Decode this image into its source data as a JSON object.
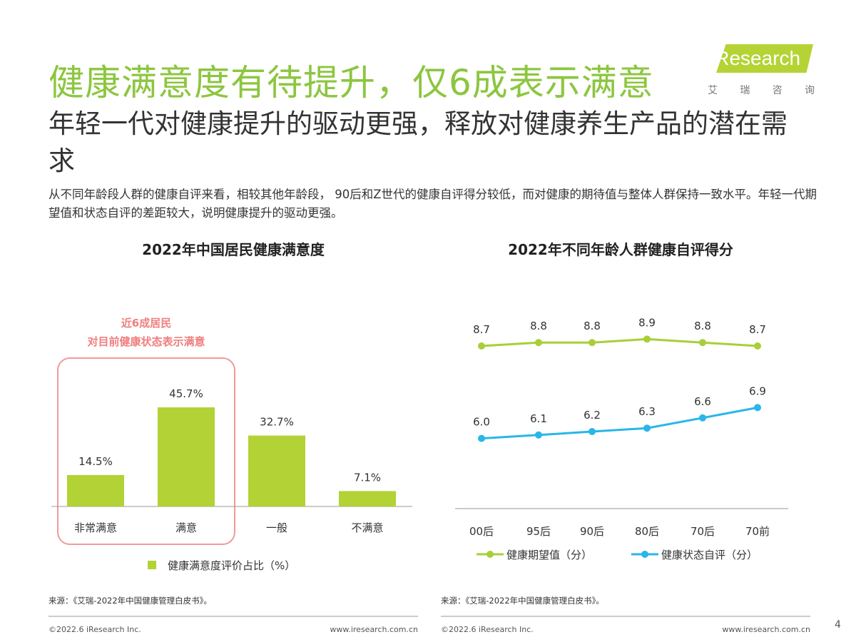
{
  "header": {
    "title": "健康满意度有待提升，仅6成表示满意",
    "subtitle": "年轻一代对健康提升的驱动更强，释放对健康养生产品的潜在需求",
    "description": "从不同年龄段人群的健康自评来看，相较其他年龄段， 90后和Z世代的健康自评得分较低，而对健康的期待值与整体人群保持一致水平。年轻一代期望值和状态自评的差距较大，说明健康提升的驱动更强。"
  },
  "logo": {
    "text": "iResearch",
    "cn": [
      "艾",
      "瑞",
      "咨",
      "询"
    ]
  },
  "annotation": {
    "line1": "近6成居民",
    "line2": "对目前健康状态表示满意",
    "color": "#f07f7f"
  },
  "chart_data": [
    {
      "type": "bar",
      "title": "2022年中国居民健康满意度",
      "categories": [
        "非常满意",
        "满意",
        "一般",
        "不满意"
      ],
      "values": [
        14.5,
        45.7,
        32.7,
        7.1
      ],
      "data_labels": [
        "14.5%",
        "45.7%",
        "32.7%",
        "7.1%"
      ],
      "series": [
        {
          "name": "健康满意度评价占比（%）",
          "values": [
            14.5,
            45.7,
            32.7,
            7.1
          ],
          "color": "#b2d235"
        }
      ],
      "legend": "bottom",
      "grid": false
    },
    {
      "type": "line",
      "title": "2022年不同年龄人群健康自评得分",
      "categories": [
        "00后",
        "95后",
        "90后",
        "80后",
        "70后",
        "70前"
      ],
      "series": [
        {
          "name": "健康期望值（分）",
          "values": [
            8.7,
            8.8,
            8.8,
            8.9,
            8.8,
            8.7
          ],
          "color": "#a8cf38"
        },
        {
          "name": "健康状态自评（分）",
          "values": [
            6.0,
            6.1,
            6.2,
            6.3,
            6.6,
            6.9
          ],
          "color": "#29b6e8"
        }
      ],
      "legend": "bottom",
      "grid": false
    }
  ],
  "footer": {
    "source_left": "来源：《艾瑞-2022年中国健康管理白皮书》。",
    "source_right": "来源：《艾瑞-2022年中国健康管理白皮书》。",
    "copyright_left": "©2022.6 iResearch Inc.",
    "url_left": "www.iresearch.com.cn",
    "copyright_right": "©2022.6 iResearch Inc.",
    "url_right": "www.iresearch.com.cn",
    "page": "4"
  }
}
